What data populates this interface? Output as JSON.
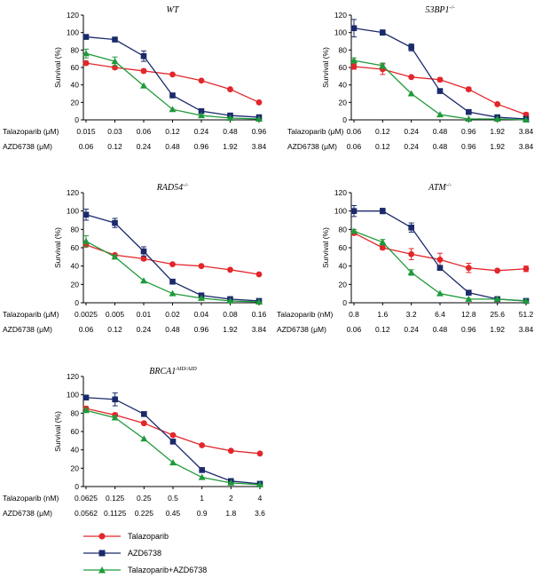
{
  "colors": {
    "talazoparib": "#e3262a",
    "azd6738": "#1b2a6b",
    "combo": "#1f9a3a",
    "axis": "#000000"
  },
  "ylabel": "Survival (%)",
  "legend": [
    {
      "key": "talazoparib",
      "label": "Talazoparib",
      "marker": "circle"
    },
    {
      "key": "azd6738",
      "label": "AZD6738",
      "marker": "square"
    },
    {
      "key": "combo",
      "label": "Talazoparib+AZD6738",
      "marker": "triangle"
    }
  ],
  "chart_data": [
    {
      "type": "line",
      "title_main": "WT",
      "title_sup": "",
      "ylabel": "Survival (%)",
      "ylim": [
        0,
        120
      ],
      "yticks": [
        0,
        20,
        40,
        60,
        80,
        100,
        120
      ],
      "row1_label": "Talazoparib (μM)",
      "row1_ticks": [
        "0.015",
        "0.03",
        "0.06",
        "0.12",
        "0.24",
        "0.48",
        "0.96"
      ],
      "row2_label": "AZD6738 (μM)",
      "row2_ticks": [
        "0.06",
        "0.12",
        "0.24",
        "0.48",
        "0.96",
        "1.92",
        "3.84"
      ],
      "series": [
        {
          "name": "Talazoparib",
          "key": "talazoparib",
          "values": [
            65,
            60,
            56,
            52,
            45,
            35,
            20
          ],
          "errors": [
            2,
            2,
            2,
            1,
            1,
            1,
            1
          ]
        },
        {
          "name": "AZD6738",
          "key": "azd6738",
          "values": [
            95,
            92,
            73,
            28,
            10,
            5,
            3
          ],
          "errors": [
            1,
            2,
            6,
            1,
            1,
            1,
            1
          ]
        },
        {
          "name": "Talazoparib+AZD6738",
          "key": "combo",
          "values": [
            76,
            67,
            39,
            12,
            5,
            2,
            1
          ],
          "errors": [
            5,
            5,
            1,
            1,
            1,
            1,
            1
          ]
        }
      ]
    },
    {
      "type": "line",
      "title_main": "53BP1",
      "title_sup": "-/-",
      "ylabel": "Survival (%)",
      "ylim": [
        0,
        120
      ],
      "yticks": [
        0,
        20,
        40,
        60,
        80,
        100,
        120
      ],
      "row1_label": "Talazoparib (μM)",
      "row1_ticks": [
        "0.06",
        "0.12",
        "0.24",
        "0.48",
        "0.96",
        "1.92",
        "3.84"
      ],
      "row2_label": "AZD6738 (μM)",
      "row2_ticks": [
        "0.06",
        "0.12",
        "0.24",
        "0.48",
        "0.96",
        "1.92",
        "3.84"
      ],
      "series": [
        {
          "name": "Talazoparib",
          "key": "talazoparib",
          "values": [
            61,
            58,
            49,
            46,
            35,
            18,
            6
          ],
          "errors": [
            3,
            6,
            1,
            2,
            2,
            1,
            2
          ]
        },
        {
          "name": "AZD6738",
          "key": "azd6738",
          "values": [
            105,
            100,
            83,
            33,
            9,
            3,
            1
          ],
          "errors": [
            10,
            3,
            4,
            1,
            1,
            1,
            1
          ]
        },
        {
          "name": "Talazoparib+AZD6738",
          "key": "combo",
          "values": [
            68,
            62,
            30,
            6,
            1,
            1,
            0
          ],
          "errors": [
            3,
            3,
            1,
            1,
            1,
            1,
            1
          ]
        }
      ]
    },
    {
      "type": "line",
      "title_main": "RAD54",
      "title_sup": "-/-",
      "ylabel": "Survival (%)",
      "ylim": [
        0,
        120
      ],
      "yticks": [
        0,
        20,
        40,
        60,
        80,
        100,
        120
      ],
      "row1_label": "Talazoparib (μM)",
      "row1_ticks": [
        "0.0025",
        "0.005",
        "0.01",
        "0.02",
        "0.04",
        "0.08",
        "0.16"
      ],
      "row2_label": "AZD6738 (μM)",
      "row2_ticks": [
        "0.06",
        "0.12",
        "0.24",
        "0.48",
        "0.96",
        "1.92",
        "3.84"
      ],
      "series": [
        {
          "name": "Talazoparib",
          "key": "talazoparib",
          "values": [
            63,
            52,
            48,
            42,
            40,
            36,
            31
          ],
          "errors": [
            2,
            1,
            2,
            1,
            1,
            1,
            1
          ]
        },
        {
          "name": "AZD6738",
          "key": "azd6738",
          "values": [
            96,
            87,
            56,
            23,
            8,
            4,
            2
          ],
          "errors": [
            6,
            5,
            5,
            1,
            1,
            1,
            1
          ]
        },
        {
          "name": "Talazoparib+AZD6738",
          "key": "combo",
          "values": [
            67,
            50,
            24,
            10,
            5,
            2,
            1
          ],
          "errors": [
            6,
            2,
            1,
            1,
            1,
            1,
            1
          ]
        }
      ]
    },
    {
      "type": "line",
      "title_main": "ATM",
      "title_sup": "-/-",
      "ylabel": "Survival (%)",
      "ylim": [
        0,
        120
      ],
      "yticks": [
        0,
        20,
        40,
        60,
        80,
        100,
        120
      ],
      "row1_label": "Talazoparib (nM)",
      "row1_ticks": [
        "0.8",
        "1.6",
        "3.2",
        "6.4",
        "12.8",
        "25.6",
        "51.2"
      ],
      "row2_label": "AZD6738 (μM)",
      "row2_ticks": [
        "0.06",
        "0.12",
        "0.24",
        "0.48",
        "0.96",
        "1.92",
        "3.84"
      ],
      "series": [
        {
          "name": "Talazoparib",
          "key": "talazoparib",
          "values": [
            76,
            60,
            53,
            47,
            38,
            35,
            37
          ],
          "errors": [
            2,
            2,
            6,
            7,
            5,
            1,
            3
          ]
        },
        {
          "name": "AZD6738",
          "key": "azd6738",
          "values": [
            100,
            100,
            82,
            38,
            11,
            4,
            2
          ],
          "errors": [
            6,
            3,
            5,
            2,
            1,
            1,
            1
          ]
        },
        {
          "name": "Talazoparib+AZD6738",
          "key": "combo",
          "values": [
            78,
            66,
            33,
            10,
            4,
            4,
            2
          ],
          "errors": [
            2,
            3,
            3,
            1,
            1,
            1,
            1
          ]
        }
      ]
    },
    {
      "type": "line",
      "title_main": "BRCA1",
      "title_sup": "AID/AID",
      "ylabel": "Survival (%)",
      "ylim": [
        0,
        120
      ],
      "yticks": [
        0,
        20,
        40,
        60,
        80,
        100,
        120
      ],
      "row1_label": "Talazoparib (nM)",
      "row1_ticks": [
        "0.0625",
        "0.125",
        "0.25",
        "0.5",
        "1",
        "2",
        "4"
      ],
      "row2_label": "AZD6738 (μM)",
      "row2_ticks": [
        "0.0562",
        "0.1125",
        "0.225",
        "0.45",
        "0.9",
        "1.8",
        "3.6"
      ],
      "series": [
        {
          "name": "Talazoparib",
          "key": "talazoparib",
          "values": [
            85,
            78,
            69,
            56,
            45,
            39,
            36
          ],
          "errors": [
            2,
            2,
            1,
            1,
            1,
            1,
            1
          ]
        },
        {
          "name": "AZD6738",
          "key": "azd6738",
          "values": [
            97,
            95,
            79,
            49,
            18,
            6,
            3
          ],
          "errors": [
            2,
            7,
            2,
            2,
            1,
            1,
            1
          ]
        },
        {
          "name": "Talazoparib+AZD6738",
          "key": "combo",
          "values": [
            83,
            75,
            52,
            26,
            10,
            4,
            2
          ],
          "errors": [
            2,
            2,
            1,
            1,
            1,
            1,
            1
          ]
        }
      ]
    }
  ]
}
